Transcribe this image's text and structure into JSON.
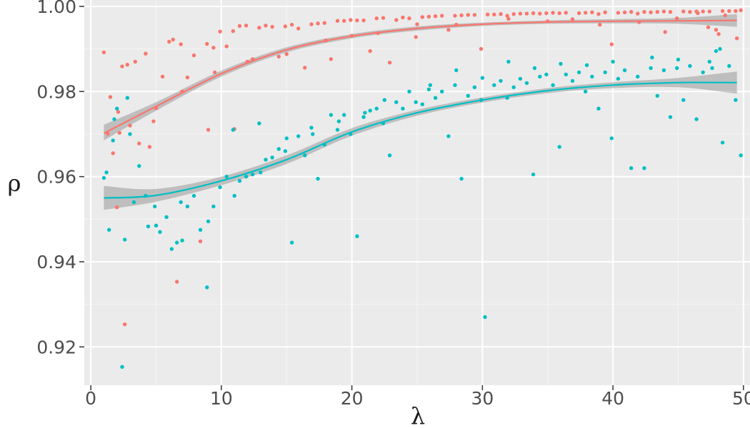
{
  "chart_data": {
    "type": "scatter",
    "title": "",
    "xlabel": "λ",
    "ylabel": "ρ",
    "xlim": [
      -0.5,
      50.5
    ],
    "ylim": [
      0.911,
      1.0015
    ],
    "grid": true,
    "legend": "none",
    "x_ticks": [
      0,
      10,
      20,
      30,
      40,
      50
    ],
    "y_ticks": [
      0.92,
      0.94,
      0.96,
      0.98,
      1.0
    ],
    "x_tick_labels": [
      "0",
      "10",
      "20",
      "30",
      "40",
      "50"
    ],
    "y_tick_labels": [
      "0.92",
      "0.94",
      "0.96",
      "0.98",
      "1.00"
    ],
    "series": [
      {
        "color": "#F8766D",
        "points": [
          [
            1.0,
            0.9892
          ],
          [
            1.5,
            0.9787
          ],
          [
            1.7,
            0.9655
          ],
          [
            2.0,
            0.9528
          ],
          [
            2.1,
            0.9752
          ],
          [
            2.4,
            0.9859
          ],
          [
            2.6,
            0.9253
          ],
          [
            2.8,
            0.9863
          ],
          [
            3.4,
            0.987
          ],
          [
            3.7,
            0.9678
          ],
          [
            4.2,
            0.9889
          ],
          [
            4.5,
            0.967
          ],
          [
            5.0,
            0.9761
          ],
          [
            5.5,
            0.9835
          ],
          [
            6.0,
            0.9917
          ],
          [
            6.3,
            0.9922
          ],
          [
            6.6,
            0.9353
          ],
          [
            6.9,
            0.9911
          ],
          [
            7.4,
            0.9833
          ],
          [
            7.9,
            0.9885
          ],
          [
            8.4,
            0.9448
          ],
          [
            8.9,
            0.9912
          ],
          [
            9.4,
            0.9903
          ],
          [
            9.9,
            0.9941
          ],
          [
            10.4,
            0.9906
          ],
          [
            10.9,
            0.9942
          ],
          [
            11.4,
            0.9954
          ],
          [
            11.9,
            0.9955
          ],
          [
            12.4,
            0.9876
          ],
          [
            12.9,
            0.995
          ],
          [
            13.4,
            0.9955
          ],
          [
            13.9,
            0.9952
          ],
          [
            14.4,
            0.9882
          ],
          [
            14.9,
            0.9953
          ],
          [
            15.4,
            0.9957
          ],
          [
            15.9,
            0.9948
          ],
          [
            16.4,
            0.9856
          ],
          [
            16.9,
            0.9958
          ],
          [
            17.4,
            0.996
          ],
          [
            17.9,
            0.9961
          ],
          [
            18.4,
            0.9876
          ],
          [
            18.9,
            0.9966
          ],
          [
            19.4,
            0.9966
          ],
          [
            19.9,
            0.9968
          ],
          [
            20.4,
            0.9967
          ],
          [
            20.9,
            0.9967
          ],
          [
            21.4,
            0.9895
          ],
          [
            21.9,
            0.9972
          ],
          [
            22.4,
            0.9973
          ],
          [
            22.9,
            0.9868
          ],
          [
            23.4,
            0.9968
          ],
          [
            23.9,
            0.9974
          ],
          [
            24.4,
            0.9972
          ],
          [
            24.9,
            0.9928
          ],
          [
            25.4,
            0.9975
          ],
          [
            25.9,
            0.9976
          ],
          [
            26.4,
            0.9977
          ],
          [
            26.9,
            0.9978
          ],
          [
            27.4,
            0.9945
          ],
          [
            27.9,
            0.9978
          ],
          [
            28.4,
            0.9979
          ],
          [
            28.9,
            0.998
          ],
          [
            29.4,
            0.998
          ],
          [
            29.9,
            0.99
          ],
          [
            30.4,
            0.9981
          ],
          [
            30.9,
            0.9981
          ],
          [
            31.4,
            0.9982
          ],
          [
            31.9,
            0.9978
          ],
          [
            32.4,
            0.9982
          ],
          [
            32.9,
            0.9983
          ],
          [
            33.4,
            0.9983
          ],
          [
            33.9,
            0.9984
          ],
          [
            34.4,
            0.9983
          ],
          [
            34.9,
            0.9984
          ],
          [
            35.4,
            0.9985
          ],
          [
            35.9,
            0.9984
          ],
          [
            36.4,
            0.9985
          ],
          [
            36.9,
            0.997
          ],
          [
            37.4,
            0.9984
          ],
          [
            37.9,
            0.9985
          ],
          [
            38.4,
            0.9986
          ],
          [
            38.9,
            0.9982
          ],
          [
            39.4,
            0.9986
          ],
          [
            39.9,
            0.9911
          ],
          [
            40.4,
            0.9985
          ],
          [
            40.9,
            0.9986
          ],
          [
            41.4,
            0.9987
          ],
          [
            41.9,
            0.9983
          ],
          [
            42.4,
            0.9987
          ],
          [
            42.9,
            0.9986
          ],
          [
            43.4,
            0.9987
          ],
          [
            43.9,
            0.9988
          ],
          [
            44.4,
            0.9987
          ],
          [
            44.9,
            0.9972
          ],
          [
            45.4,
            0.9988
          ],
          [
            45.9,
            0.9987
          ],
          [
            46.4,
            0.9988
          ],
          [
            46.9,
            0.9988
          ],
          [
            47.4,
            0.9988
          ],
          [
            47.9,
            0.9945
          ],
          [
            48.4,
            0.9989
          ],
          [
            48.9,
            0.9989
          ],
          [
            49.4,
            0.9989
          ],
          [
            49.8,
            0.9991
          ],
          [
            49.5,
            0.9925
          ],
          [
            48.1,
            0.9935
          ],
          [
            47.3,
            0.9951
          ],
          [
            44.0,
            0.994
          ],
          [
            39.0,
            0.9957
          ],
          [
            32.0,
            0.9971
          ],
          [
            28.0,
            0.9957
          ],
          [
            22.0,
            0.9937
          ],
          [
            18.0,
            0.992
          ],
          [
            15.0,
            0.9888
          ],
          [
            12.0,
            0.987
          ],
          [
            9.5,
            0.9845
          ],
          [
            7.0,
            0.98
          ],
          [
            4.8,
            0.973
          ],
          [
            3.0,
            0.972
          ],
          [
            2.2,
            0.9703
          ],
          [
            1.3,
            0.9701
          ],
          [
            11.0,
            0.9712
          ],
          [
            9.0,
            0.971
          ],
          [
            20.0,
            0.9931
          ],
          [
            25.0,
            0.9958
          ],
          [
            35.0,
            0.9965
          ],
          [
            42.0,
            0.9963
          ],
          [
            46.5,
            0.9984
          ],
          [
            48.6,
            0.9979
          ]
        ]
      },
      {
        "color": "#00BFC4",
        "points": [
          [
            1.0,
            0.9597
          ],
          [
            1.4,
            0.9475
          ],
          [
            1.7,
            0.9685
          ],
          [
            2.0,
            0.976
          ],
          [
            2.4,
            0.9153
          ],
          [
            2.6,
            0.9452
          ],
          [
            2.8,
            0.9785
          ],
          [
            3.3,
            0.954
          ],
          [
            3.7,
            0.9625
          ],
          [
            4.2,
            0.9555
          ],
          [
            4.4,
            0.9483
          ],
          [
            4.9,
            0.953
          ],
          [
            5.3,
            0.947
          ],
          [
            5.8,
            0.9505
          ],
          [
            6.2,
            0.943
          ],
          [
            6.6,
            0.9445
          ],
          [
            6.9,
            0.954
          ],
          [
            7.4,
            0.953
          ],
          [
            7.9,
            0.9555
          ],
          [
            8.4,
            0.9475
          ],
          [
            8.9,
            0.934
          ],
          [
            9.4,
            0.953
          ],
          [
            9.9,
            0.9575
          ],
          [
            10.4,
            0.96
          ],
          [
            10.9,
            0.971
          ],
          [
            11.4,
            0.959
          ],
          [
            11.9,
            0.96
          ],
          [
            12.4,
            0.9605
          ],
          [
            12.9,
            0.9725
          ],
          [
            13.4,
            0.964
          ],
          [
            13.9,
            0.9645
          ],
          [
            14.4,
            0.9665
          ],
          [
            14.9,
            0.966
          ],
          [
            15.4,
            0.9445
          ],
          [
            15.9,
            0.9695
          ],
          [
            16.4,
            0.965
          ],
          [
            16.9,
            0.9715
          ],
          [
            17.4,
            0.9595
          ],
          [
            17.9,
            0.9675
          ],
          [
            18.4,
            0.9745
          ],
          [
            18.9,
            0.971
          ],
          [
            19.4,
            0.9745
          ],
          [
            19.9,
            0.97
          ],
          [
            20.4,
            0.946
          ],
          [
            20.9,
            0.974
          ],
          [
            21.4,
            0.9755
          ],
          [
            21.9,
            0.976
          ],
          [
            22.4,
            0.9725
          ],
          [
            22.9,
            0.965
          ],
          [
            23.4,
            0.9775
          ],
          [
            23.9,
            0.976
          ],
          [
            24.4,
            0.98
          ],
          [
            24.9,
            0.9775
          ],
          [
            25.4,
            0.977
          ],
          [
            25.9,
            0.9805
          ],
          [
            26.4,
            0.9785
          ],
          [
            26.9,
            0.98
          ],
          [
            27.4,
            0.9695
          ],
          [
            27.9,
            0.9815
          ],
          [
            28.4,
            0.9595
          ],
          [
            28.9,
            0.979
          ],
          [
            29.4,
            0.981
          ],
          [
            29.9,
            0.978
          ],
          [
            30.2,
            0.927
          ],
          [
            30.9,
            0.9815
          ],
          [
            31.4,
            0.9825
          ],
          [
            31.9,
            0.9785
          ],
          [
            32.4,
            0.981
          ],
          [
            32.9,
            0.983
          ],
          [
            33.4,
            0.982
          ],
          [
            33.9,
            0.9605
          ],
          [
            34.4,
            0.9835
          ],
          [
            34.9,
            0.984
          ],
          [
            35.4,
            0.9815
          ],
          [
            35.9,
            0.967
          ],
          [
            36.4,
            0.984
          ],
          [
            36.9,
            0.9825
          ],
          [
            37.4,
            0.9845
          ],
          [
            37.9,
            0.98
          ],
          [
            38.4,
            0.9835
          ],
          [
            38.9,
            0.976
          ],
          [
            39.4,
            0.9845
          ],
          [
            39.9,
            0.969
          ],
          [
            40.4,
            0.983
          ],
          [
            40.9,
            0.985
          ],
          [
            41.4,
            0.962
          ],
          [
            41.9,
            0.9835
          ],
          [
            42.4,
            0.962
          ],
          [
            42.9,
            0.9855
          ],
          [
            43.4,
            0.979
          ],
          [
            43.9,
            0.985
          ],
          [
            44.4,
            0.974
          ],
          [
            44.9,
            0.9855
          ],
          [
            45.4,
            0.978
          ],
          [
            45.9,
            0.986
          ],
          [
            46.4,
            0.9735
          ],
          [
            46.9,
            0.9845
          ],
          [
            47.4,
            0.987
          ],
          [
            47.9,
            0.9895
          ],
          [
            48.4,
            0.968
          ],
          [
            48.9,
            0.986
          ],
          [
            49.4,
            0.978
          ],
          [
            49.8,
            0.965
          ],
          [
            48.2,
            0.99
          ],
          [
            47.6,
            0.9855
          ],
          [
            45.0,
            0.9875
          ],
          [
            43.0,
            0.988
          ],
          [
            40.0,
            0.987
          ],
          [
            38.0,
            0.9862
          ],
          [
            36.0,
            0.9865
          ],
          [
            34.0,
            0.9855
          ],
          [
            32.0,
            0.987
          ],
          [
            30.0,
            0.9832
          ],
          [
            28.0,
            0.985
          ],
          [
            26.0,
            0.9815
          ],
          [
            22.5,
            0.978
          ],
          [
            21.0,
            0.975
          ],
          [
            19.0,
            0.973
          ],
          [
            17.0,
            0.97
          ],
          [
            15.0,
            0.969
          ],
          [
            13.0,
            0.961
          ],
          [
            11.0,
            0.9555
          ],
          [
            9.0,
            0.9495
          ],
          [
            7.0,
            0.945
          ],
          [
            5.0,
            0.9485
          ],
          [
            3.0,
            0.97
          ],
          [
            1.8,
            0.9735
          ],
          [
            1.2,
            0.961
          ]
        ]
      }
    ],
    "smooth": [
      {
        "color": "#F8766D",
        "x": [
          1.0,
          5.0,
          10.0,
          15.0,
          20.0,
          25.0,
          30.0,
          35.0,
          40.0,
          45.0,
          49.5
        ],
        "y": [
          0.9702,
          0.9765,
          0.9842,
          0.9898,
          0.993,
          0.9948,
          0.9958,
          0.9963,
          0.9965,
          0.9966,
          0.9967
        ],
        "lower": [
          0.9685,
          0.9755,
          0.9835,
          0.9892,
          0.9925,
          0.9943,
          0.9954,
          0.9959,
          0.996,
          0.9959,
          0.9952
        ],
        "upper": [
          0.9722,
          0.9775,
          0.9849,
          0.9904,
          0.9935,
          0.9953,
          0.9962,
          0.9967,
          0.997,
          0.9973,
          0.9982
        ]
      },
      {
        "color": "#00BFC4",
        "x": [
          1.0,
          5.0,
          10.0,
          15.0,
          20.0,
          25.0,
          30.0,
          35.0,
          40.0,
          45.0,
          49.5
        ],
        "y": [
          0.955,
          0.9556,
          0.959,
          0.964,
          0.9705,
          0.975,
          0.978,
          0.9802,
          0.9815,
          0.9821,
          0.9821
        ],
        "lower": [
          0.9522,
          0.9541,
          0.958,
          0.963,
          0.9696,
          0.9743,
          0.9774,
          0.9796,
          0.9808,
          0.981,
          0.9795
        ],
        "upper": [
          0.9578,
          0.9571,
          0.96,
          0.965,
          0.9714,
          0.9757,
          0.9786,
          0.9808,
          0.9822,
          0.9832,
          0.9847
        ]
      }
    ]
  }
}
